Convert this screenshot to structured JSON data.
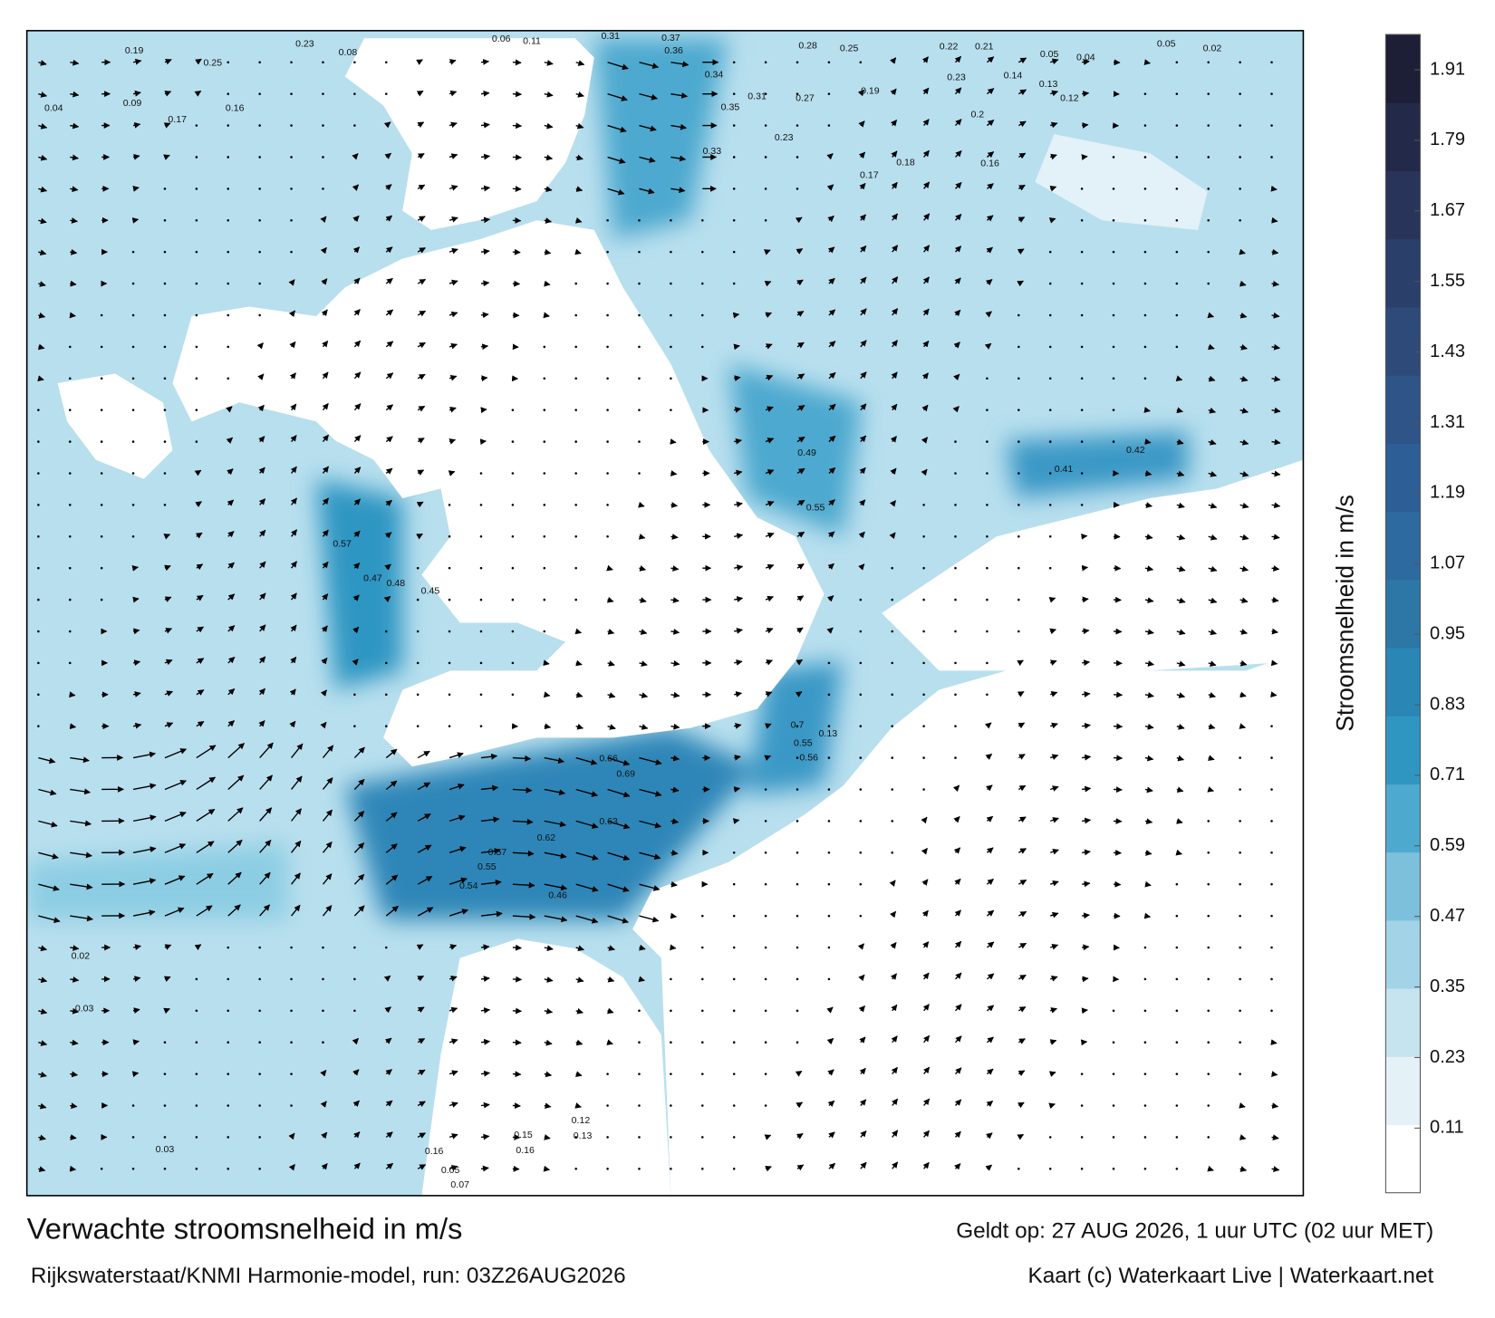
{
  "map": {
    "title": "Verwachte stroomsnelheid in m/s",
    "subtitle": "Rijkswaterstaat/KNMI Harmonie-model, run: 03Z26AUG2026",
    "valid_time": "Geldt op: 27 AUG 2026, 1 uur UTC (02 uur MET)",
    "credit": "Kaart (c) Waterkaart Live | Waterkaart.net",
    "labels": [
      "0.19",
      "0.25",
      "0.23",
      "0.08",
      "0.06",
      "0.11",
      "0.31",
      "0.37",
      "0.28",
      "0.25",
      "0.22",
      "0.21",
      "0.05",
      "0.04",
      "0.05",
      "0.02",
      "0.04",
      "0.09",
      "0.17",
      "0.16",
      "0.36",
      "0.34",
      "0.35",
      "0.31",
      "0.27",
      "0.33",
      "0.23",
      "0.2",
      "0.16",
      "0.18",
      "0.17",
      "0.19",
      "0.23",
      "0.14",
      "0.13",
      "0.12",
      "0.66",
      "0.69",
      "0.63",
      "0.62",
      "0.57",
      "0.55",
      "0.54",
      "0.46",
      "0.47",
      "0.48",
      "0.45",
      "0.57",
      "0.49",
      "0.55",
      "0.41",
      "0.42",
      "0.7",
      "0.55",
      "0.56",
      "0.13",
      "0.02",
      "0.03",
      "0.03",
      "0.07",
      "0.05",
      "0.16",
      "0.15",
      "0.16",
      "0.12",
      "0.13"
    ]
  },
  "colorbar": {
    "label": "Stroomsnelheid in m/s",
    "clim": [
      0,
      1.97
    ],
    "ticks": [
      0.11,
      0.23,
      0.35,
      0.47,
      0.59,
      0.71,
      0.83,
      0.95,
      1.07,
      1.19,
      1.31,
      1.43,
      1.55,
      1.67,
      1.79,
      1.91
    ],
    "colors": [
      "#ffffff",
      "#e4f2f7",
      "#c6e4ef",
      "#a3d3e6",
      "#7cc0dc",
      "#4ea9cf",
      "#2f96c2",
      "#2a86b4",
      "#2c77a6",
      "#2d6aa0",
      "#2d5f96",
      "#2f5488",
      "#2d4a79",
      "#2b3f6b",
      "#283459",
      "#232948",
      "#1c1f36"
    ]
  }
}
